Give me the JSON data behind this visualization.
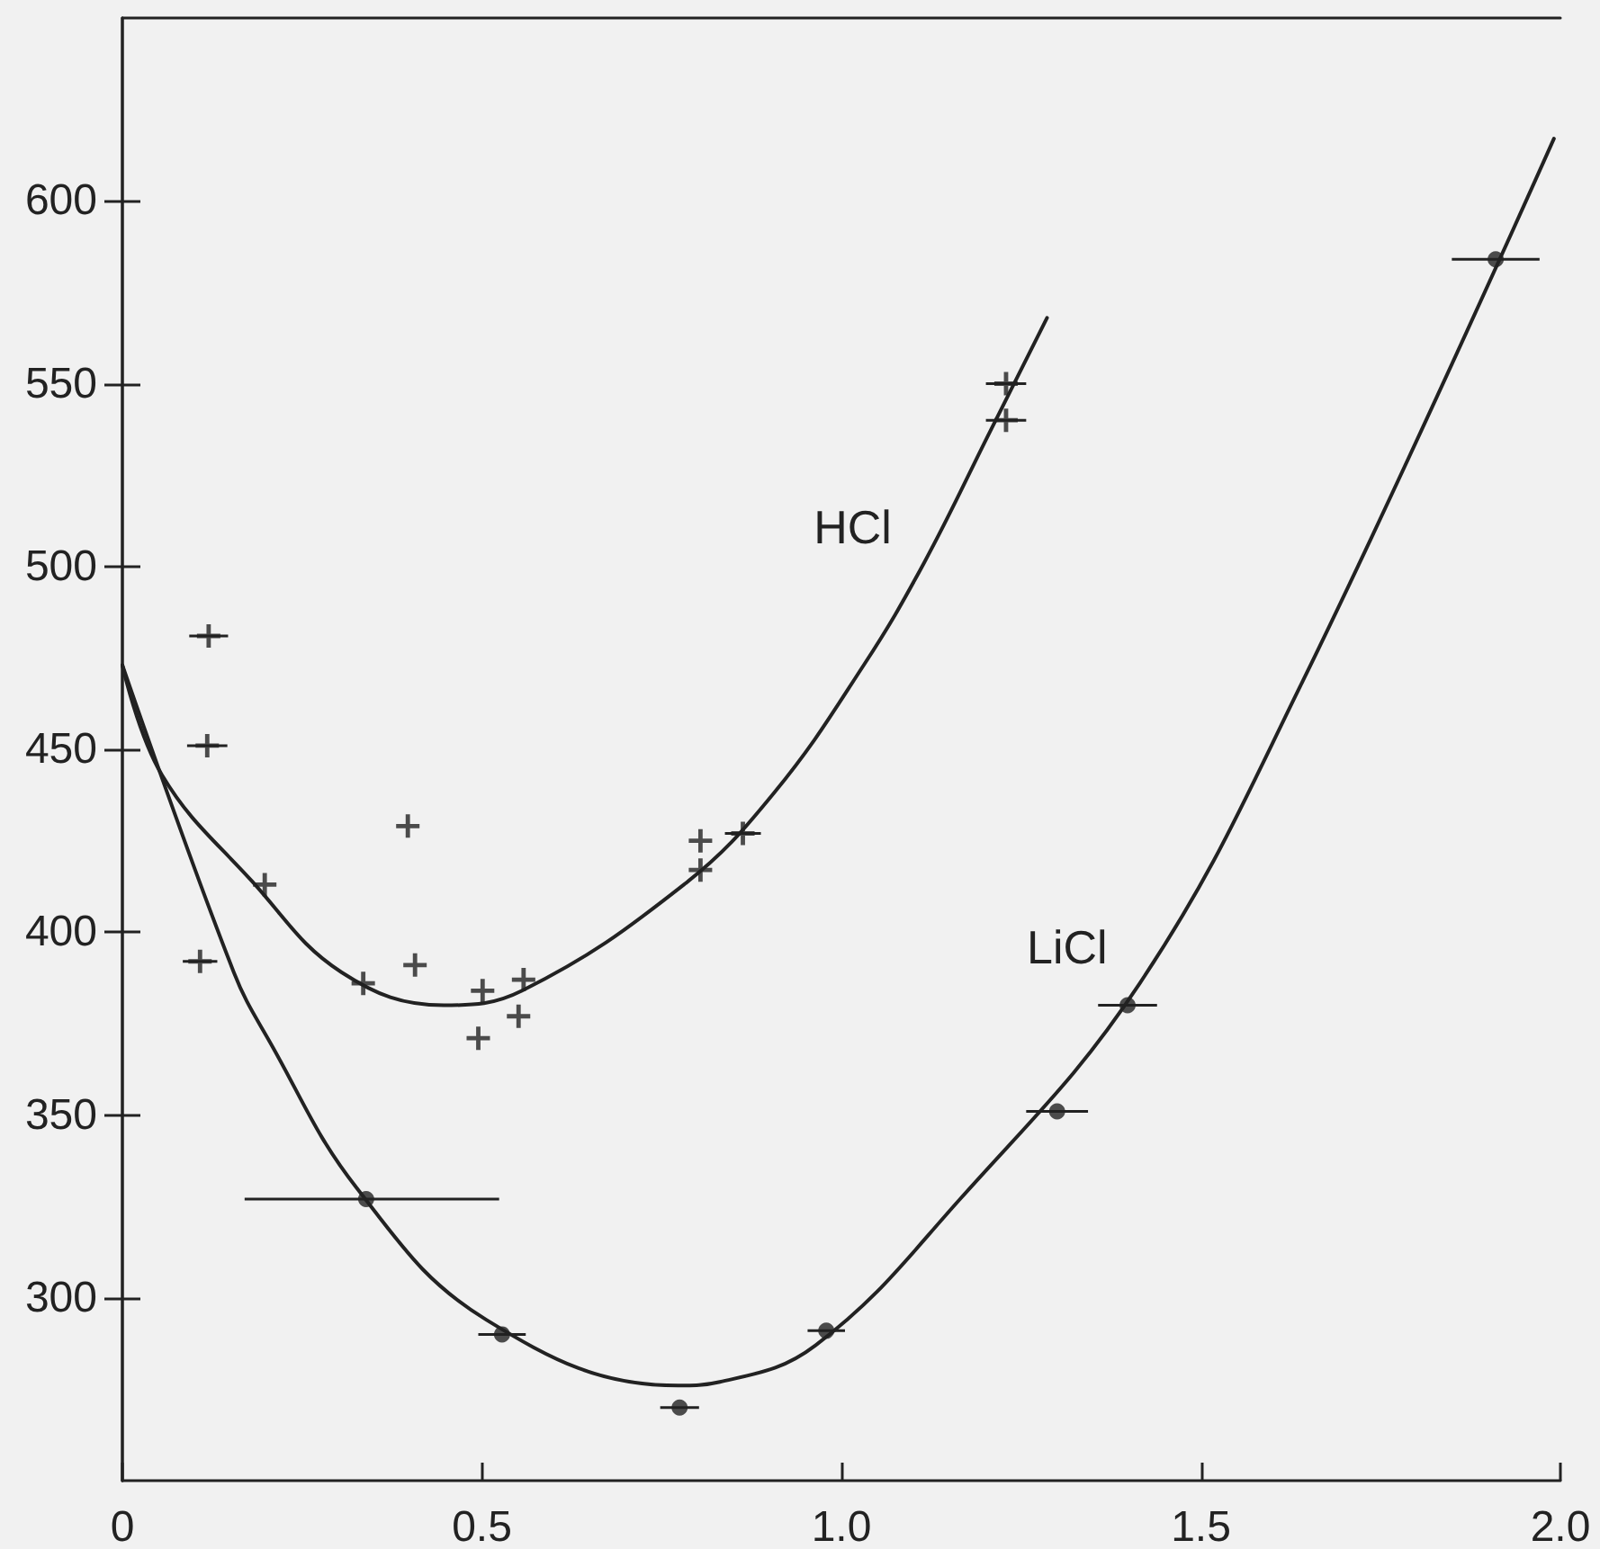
{
  "chart_data": {
    "type": "scatter",
    "xlim": [
      0,
      2.0
    ],
    "xticks": [
      0,
      0.5,
      {
        "value": 1.0,
        "label": "1.0"
      },
      1.5,
      {
        "value": 2.0,
        "label": "2.0"
      }
    ],
    "ylim": [
      250,
      650
    ],
    "yticks": [
      300,
      350,
      400,
      450,
      500,
      550,
      600
    ],
    "grid": false,
    "legend": false,
    "series": [
      {
        "marker": "cross",
        "color": "#222222",
        "x": [
          0.12,
          0.118,
          0.108,
          0.198,
          0.397,
          0.407,
          0.335,
          0.501,
          0.558,
          0.495,
          0.551,
          0.804,
          0.804,
          0.863,
          1.229,
          1.229
        ],
        "values": [
          481,
          451,
          392,
          413,
          429,
          391,
          386,
          384,
          387,
          371,
          377,
          425,
          417,
          427,
          550,
          540
        ],
        "xerrors": [
          0.027,
          0.028,
          0.024,
          null,
          null,
          null,
          null,
          null,
          null,
          null,
          null,
          null,
          null,
          0.025,
          0.028,
          0.028
        ]
      },
      {
        "type": "line",
        "name": "HCl",
        "marker": "none",
        "line_style": "solid",
        "color": "#222222",
        "x": [
          0,
          0.055,
          0.18,
          0.305,
          0.447,
          0.556,
          0.781,
          0.906,
          1.031,
          1.115,
          1.207,
          1.286
        ],
        "values": [
          473,
          443,
          414,
          389,
          380,
          384,
          413,
          438,
          473,
          501,
          537,
          568
        ]
      },
      {
        "marker": "circle",
        "color": "#222222",
        "x": [
          0.339,
          0.528,
          0.775,
          0.979,
          1.3,
          1.398,
          1.91
        ],
        "values": [
          327,
          290,
          270,
          291,
          351,
          380,
          584
        ],
        "xerrors": [
          [
            0.17,
            0.524
          ],
          0.033,
          0.027,
          0.026,
          0.043,
          0.041,
          0.061
        ]
      },
      {
        "type": "line",
        "name": "LiCl",
        "marker": "none",
        "line_style": "solid",
        "color": "#222222",
        "x": [
          0,
          0.155,
          0.205,
          0.326,
          0.506,
          0.773,
          0.831,
          0.964,
          1.165,
          1.415,
          1.64,
          1.991
        ],
        "values": [
          473,
          389,
          370,
          330,
          294,
          276,
          277,
          287,
          327,
          386,
          468,
          617
        ]
      }
    ]
  }
}
